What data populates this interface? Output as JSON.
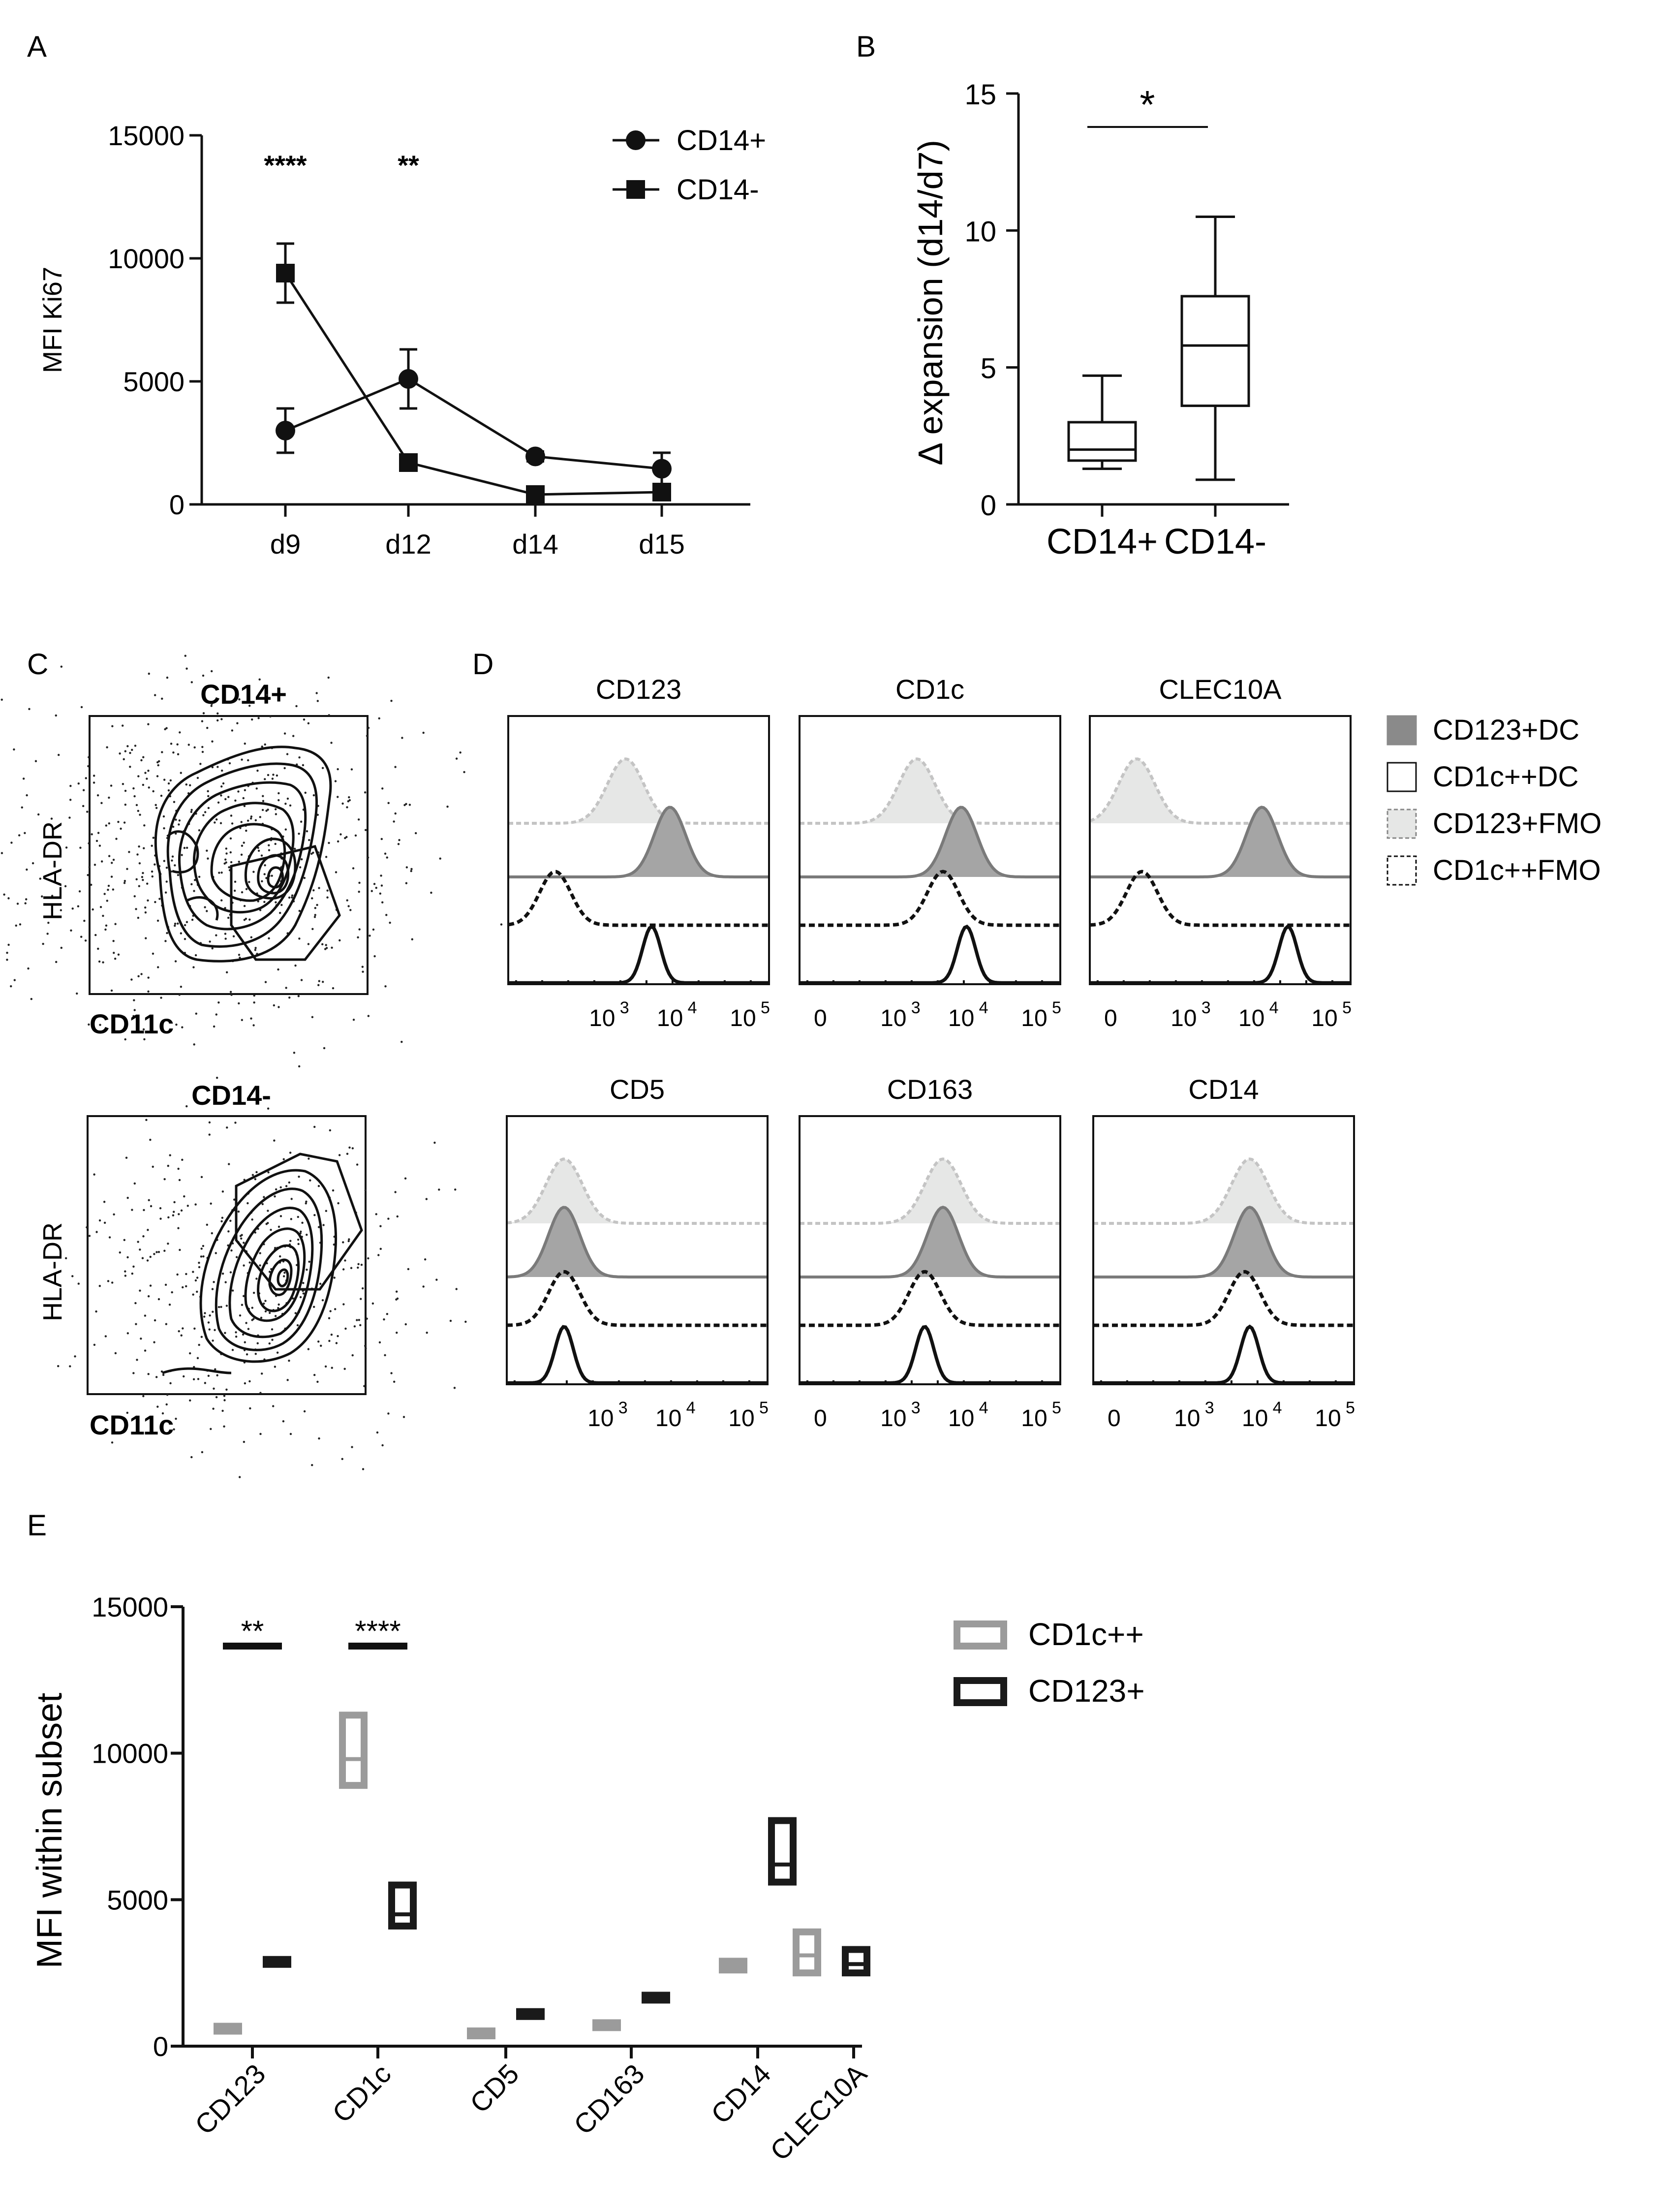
{
  "panels": {
    "A": {
      "letter": "A",
      "chart_data": {
        "type": "line",
        "title": "",
        "ylabel": "MFI Ki67",
        "xlabel": "",
        "ylim": [
          0,
          15000
        ],
        "yticks": [
          "0",
          "5000",
          "10000",
          "15000"
        ],
        "categories": [
          "d9",
          "d12",
          "d14",
          "d15"
        ],
        "series": [
          {
            "name": "CD14+",
            "marker": "circle",
            "values": [
              3000,
              5100,
              1950,
              1450
            ],
            "errors": [
              900,
              1200,
              200,
              650
            ]
          },
          {
            "name": "CD14-",
            "marker": "square",
            "values": [
              9400,
              1700,
              400,
              500
            ],
            "errors": [
              1200,
              200,
              100,
              300
            ]
          }
        ],
        "significance": [
          {
            "category": "d9",
            "label": "****"
          },
          {
            "category": "d12",
            "label": "**"
          }
        ]
      }
    },
    "B": {
      "letter": "B",
      "chart_data": {
        "type": "box",
        "ylabel": "Δ expansion (d14/d7)",
        "ylim": [
          0,
          15
        ],
        "yticks": [
          "0",
          "5",
          "10",
          "15"
        ],
        "categories": [
          "CD14+",
          "CD14-"
        ],
        "boxes": [
          {
            "name": "CD14+",
            "min": 1.3,
            "q1": 1.6,
            "median": 2.0,
            "q3": 3.0,
            "max": 4.7
          },
          {
            "name": "CD14-",
            "min": 0.9,
            "q1": 3.6,
            "median": 5.8,
            "q3": 7.6,
            "max": 10.5
          }
        ],
        "significance": "*"
      }
    },
    "C": {
      "letter": "C",
      "plots": [
        {
          "title": "CD14+",
          "ylabel": "HLA-DR",
          "xlabel": "CD11c"
        },
        {
          "title": "CD14-",
          "ylabel": "HLA-DR",
          "xlabel": "CD11c"
        }
      ]
    },
    "D": {
      "letter": "D",
      "histograms": [
        {
          "title": "CD123",
          "cd123dc": 0.62,
          "cd1cdc": 0.55,
          "cd123fmo": 0.45,
          "cd1cfmo": 0.18,
          "zero_label": false
        },
        {
          "title": "CD1c",
          "cd123dc": 0.62,
          "cd1cdc": 0.64,
          "cd123fmo": 0.45,
          "cd1cfmo": 0.55,
          "zero_label": true
        },
        {
          "title": "CLEC10A",
          "cd123dc": 0.66,
          "cd1cdc": 0.76,
          "cd123fmo": 0.18,
          "cd1cfmo": 0.2,
          "zero_label": true
        },
        {
          "title": "CD5",
          "cd123dc": 0.22,
          "cd1cdc": 0.22,
          "cd123fmo": 0.22,
          "cd1cfmo": 0.22,
          "zero_label": false
        },
        {
          "title": "CD163",
          "cd123dc": 0.55,
          "cd1cdc": 0.48,
          "cd123fmo": 0.55,
          "cd1cfmo": 0.48,
          "zero_label": true
        },
        {
          "title": "CD14",
          "cd123dc": 0.6,
          "cd1cdc": 0.6,
          "cd123fmo": 0.6,
          "cd1cfmo": 0.58,
          "zero_label": true
        }
      ],
      "axis_labels": [
        "0",
        "10",
        "10",
        "10"
      ],
      "axis_exponents": [
        "",
        "3",
        "4",
        "5"
      ],
      "legend": [
        {
          "label": "CD123+DC",
          "style": "filled-dark"
        },
        {
          "label": "CD1c++DC",
          "style": "open-solid"
        },
        {
          "label": "CD123+FMO",
          "style": "filled-light-dashed"
        },
        {
          "label": "CD1c++FMO",
          "style": "open-dashed"
        }
      ]
    },
    "E": {
      "letter": "E",
      "chart_data": {
        "type": "floating-bar",
        "ylabel": "MFI within subset",
        "ylim": [
          0,
          15000
        ],
        "yticks": [
          "0",
          "5000",
          "10000",
          "15000"
        ],
        "categories": [
          "CD123",
          "CD1c",
          "CD5",
          "CD163",
          "CD14",
          "CLEC10A"
        ],
        "series": [
          {
            "name": "CD1c++",
            "color": "#9b9b9b",
            "min": [
              580,
              8900,
              400,
              660,
              2600,
              2500
            ],
            "mean": [
              620,
              9800,
              460,
              730,
              2750,
              3100
            ],
            "max": [
              680,
              11300,
              520,
              800,
              2900,
              3900
            ]
          },
          {
            "name": "CD123+",
            "color": "#1a1a1a",
            "min": [
              2800,
              4100,
              1050,
              1620,
              5600,
              2500
            ],
            "mean": [
              2880,
              4500,
              1120,
              1680,
              6200,
              2800
            ],
            "max": [
              2960,
              5500,
              1180,
              1740,
              7700,
              3300
            ]
          }
        ],
        "significance": [
          {
            "category": "CD123",
            "label": "**"
          },
          {
            "category": "CD1c",
            "label": "****"
          }
        ]
      }
    }
  },
  "colors": {
    "black": "#111111",
    "grey": "#9b9b9b",
    "dark_fill": "#a5a5a5",
    "light_fill": "#e6e7e6"
  }
}
